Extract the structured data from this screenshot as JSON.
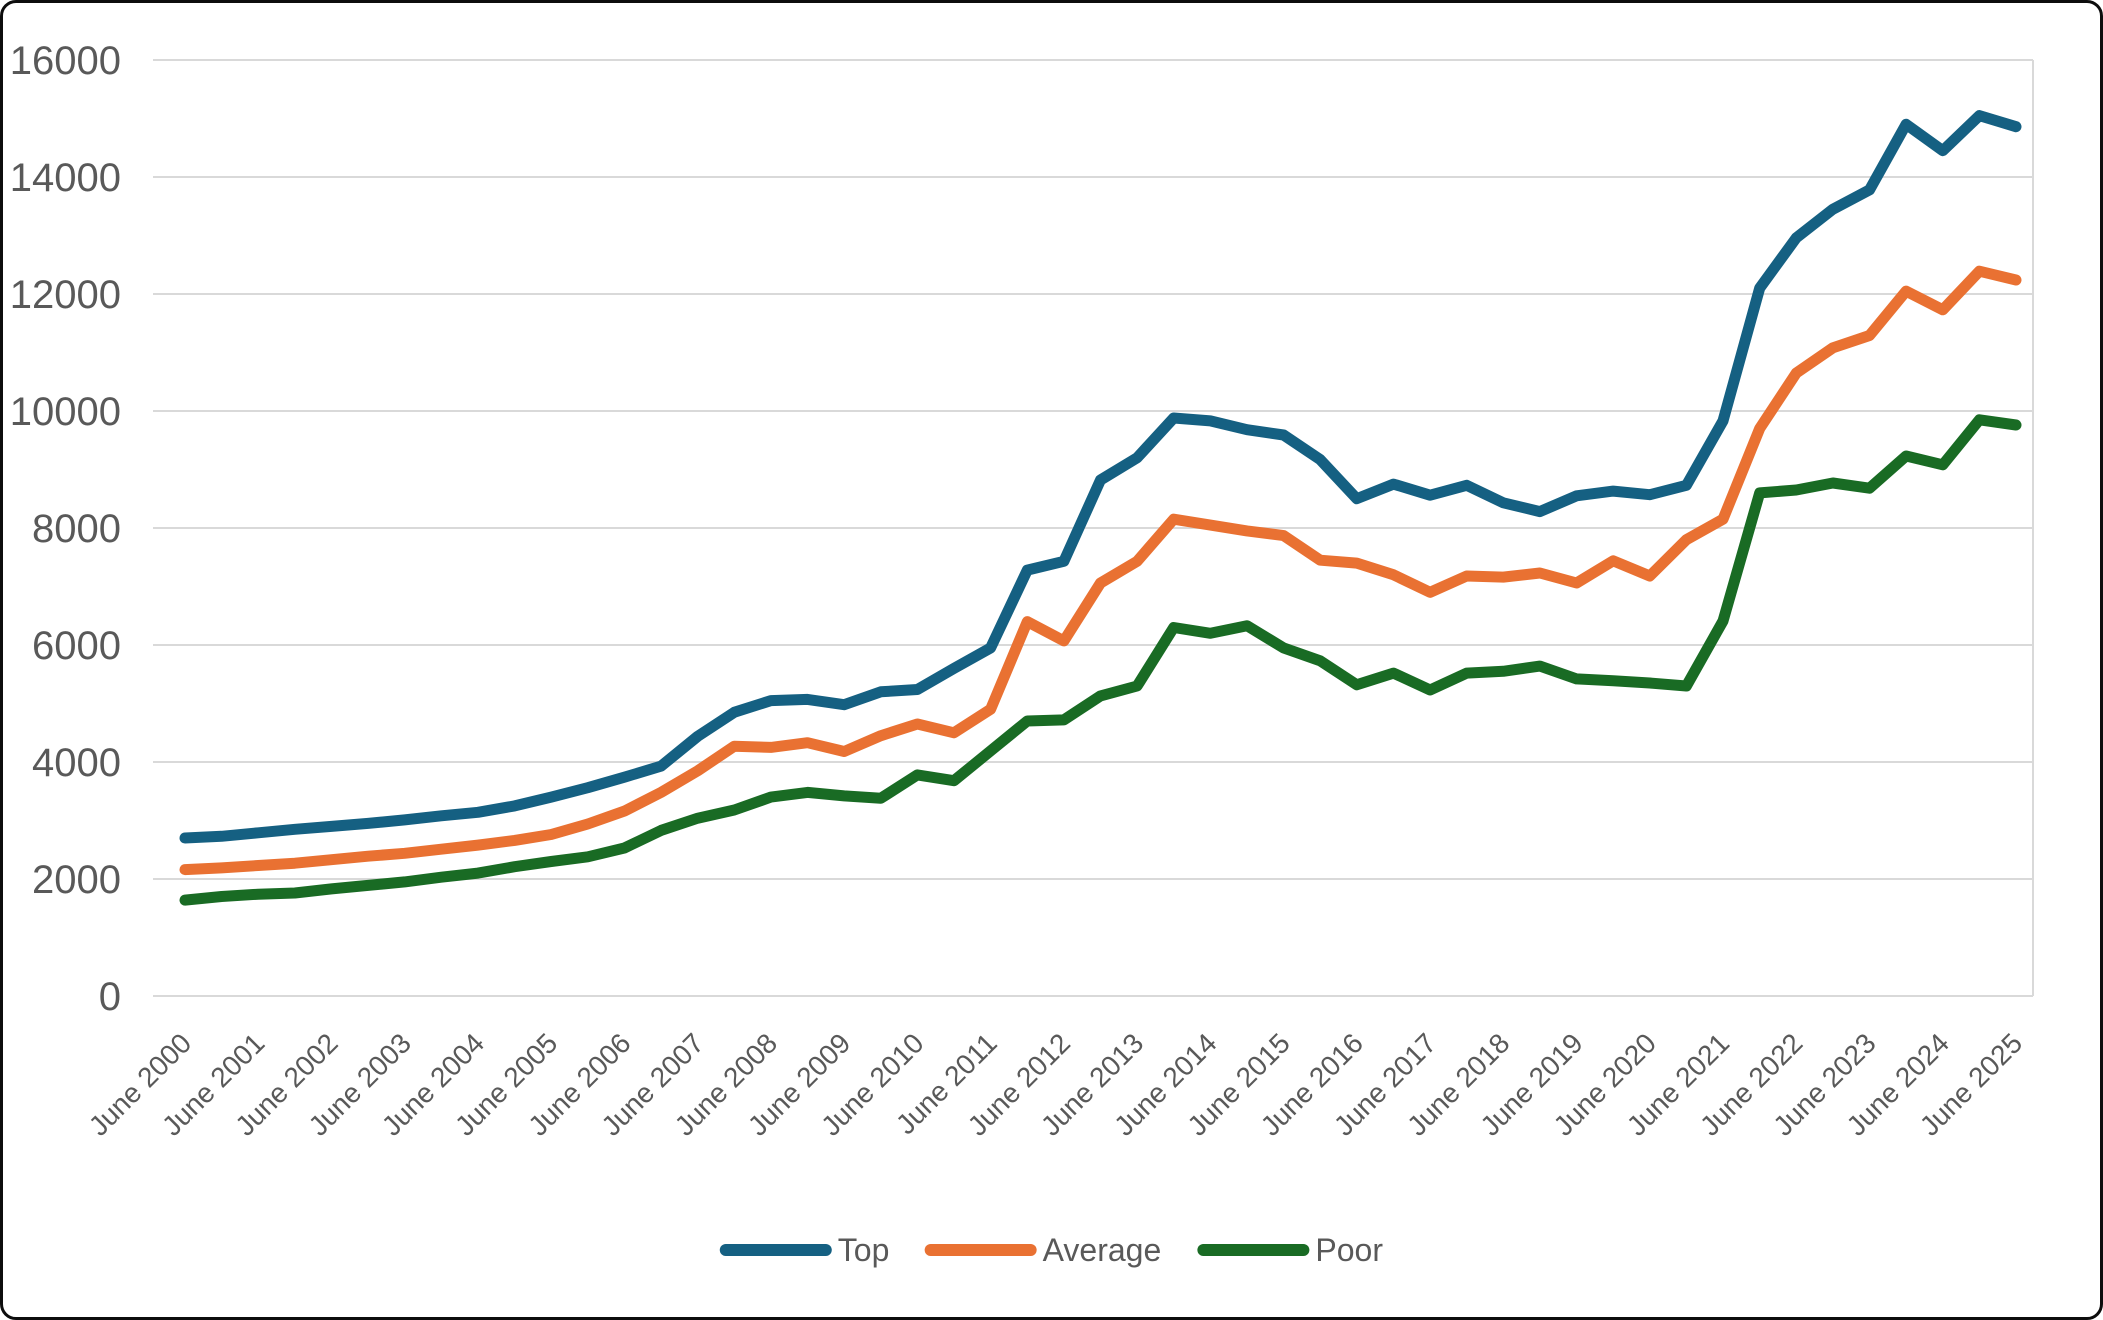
{
  "chart_data": {
    "type": "line",
    "title": "",
    "xlabel": "",
    "ylabel": "",
    "ylim": [
      0,
      16000
    ],
    "ytick_interval": 2000,
    "ytick_labels": [
      "0",
      "2000",
      "4000",
      "6000",
      "8000",
      "10000",
      "12000",
      "14000",
      "16000"
    ],
    "grid": "horizontal",
    "gridline_color": "#D9D9D9",
    "axis_label_color": "#595959",
    "legend_position": "bottom",
    "points_per_category": 2,
    "x_note": "51 semi-annual data points; tick labels shown yearly (June)",
    "categories": [
      "June 2000",
      "June 2001",
      "June 2002",
      "June 2003",
      "June 2004",
      "June 2005",
      "June 2006",
      "June 2007",
      "June 2008",
      "June 2009",
      "June 2010",
      "June 2011",
      "June 2012",
      "June 2013",
      "June 2014",
      "June 2015",
      "June 2016",
      "June 2017",
      "June 2018",
      "June 2019",
      "June 2020",
      "June 2021",
      "June 2022",
      "June 2023",
      "June 2024",
      "June 2025"
    ],
    "series": [
      {
        "name": "Top",
        "color": "#156082",
        "values": [
          2700,
          2730,
          2790,
          2850,
          2900,
          2950,
          3010,
          3080,
          3140,
          3250,
          3400,
          3560,
          3740,
          3930,
          4440,
          4850,
          5050,
          5070,
          4980,
          5200,
          5240,
          5600,
          5950,
          7280,
          7430,
          8820,
          9200,
          9880,
          9830,
          9680,
          9590,
          9170,
          8500,
          8750,
          8560,
          8730,
          8430,
          8280,
          8550,
          8630,
          8570,
          8730,
          9830,
          12100,
          12960,
          13450,
          13780,
          14900,
          14450,
          15050,
          14860
        ]
      },
      {
        "name": "Average",
        "color": "#E97132",
        "values": [
          2160,
          2190,
          2230,
          2270,
          2330,
          2390,
          2440,
          2510,
          2580,
          2660,
          2760,
          2940,
          3160,
          3480,
          3850,
          4270,
          4250,
          4330,
          4180,
          4450,
          4650,
          4500,
          4900,
          6400,
          6070,
          7060,
          7430,
          8150,
          8050,
          7950,
          7870,
          7450,
          7400,
          7200,
          6900,
          7180,
          7160,
          7230,
          7060,
          7440,
          7180,
          7800,
          8150,
          9700,
          10650,
          11080,
          11290,
          12050,
          11730,
          12390,
          12240
        ]
      },
      {
        "name": "Poor",
        "color": "#196B24",
        "values": [
          1640,
          1700,
          1740,
          1760,
          1830,
          1890,
          1950,
          2030,
          2100,
          2210,
          2300,
          2380,
          2530,
          2830,
          3040,
          3180,
          3400,
          3480,
          3420,
          3380,
          3780,
          3680,
          4190,
          4700,
          4720,
          5130,
          5300,
          6300,
          6200,
          6330,
          5950,
          5730,
          5320,
          5520,
          5230,
          5520,
          5550,
          5640,
          5420,
          5390,
          5350,
          5300,
          6410,
          8600,
          8650,
          8770,
          8680,
          9230,
          9080,
          9850,
          9760
        ]
      }
    ]
  }
}
